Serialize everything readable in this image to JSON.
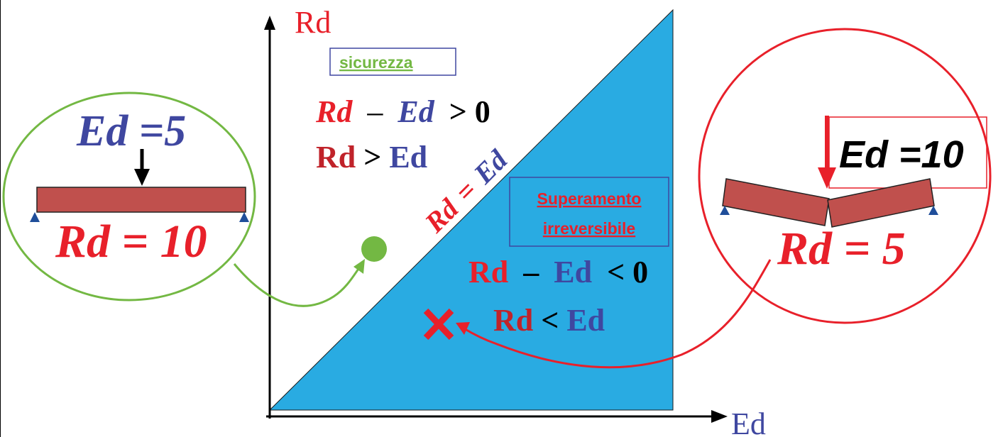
{
  "axes": {
    "y_label": "Rd",
    "x_label": "Ed"
  },
  "diagonal_label": {
    "left": "Rd",
    "eq": "=",
    "right": "Ed"
  },
  "safe_zone": {
    "box_label": "sicurezza",
    "ineq": {
      "a": "Rd",
      "minus": "–",
      "b": "Ed",
      "rel": "> 0"
    },
    "compare": {
      "a": "Rd",
      "op": ">",
      "b": "Ed"
    }
  },
  "fail_zone": {
    "box_line1": "Superamento",
    "box_line2": "irreversibile",
    "ineq": {
      "a": "Rd",
      "minus": "–",
      "b": "Ed",
      "rel": "< 0"
    },
    "compare": {
      "a": "Rd",
      "op": "<",
      "b": "Ed"
    }
  },
  "left_case": {
    "load": "Ed =5",
    "resistance": "Rd = 10"
  },
  "right_case": {
    "load": "Ed =10",
    "resistance": "Rd = 5"
  },
  "colors": {
    "red": "#e8202a",
    "blue": "#3f47a0",
    "green": "#73b843",
    "fill_blue": "#29abe2",
    "beam": "#c0504d",
    "support": "#1f4e9a"
  }
}
